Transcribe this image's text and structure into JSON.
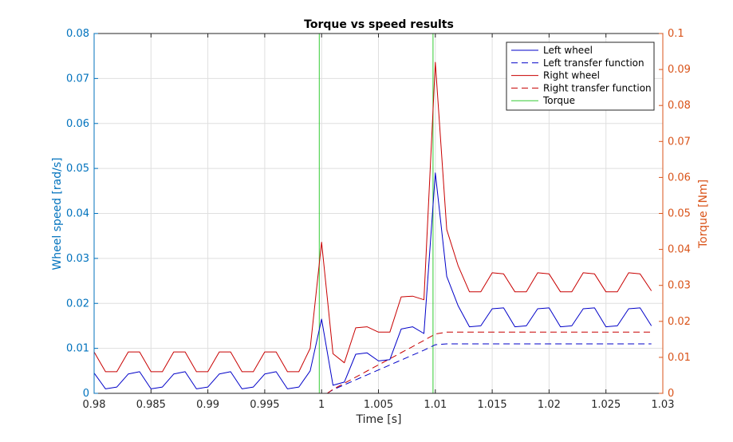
{
  "chart_data": {
    "type": "line",
    "title": "Torque vs speed results",
    "xlabel": "Time [s]",
    "ylabel_left": "Wheel speed [rad/s]",
    "ylabel_right": "Torque [Nm]",
    "xlim": [
      0.98,
      1.03
    ],
    "ylim_left": [
      0,
      0.08
    ],
    "ylim_right": [
      0,
      0.1
    ],
    "xticks": [
      "0.98",
      "0.985",
      "0.99",
      "0.995",
      "1",
      "1.005",
      "1.01",
      "1.015",
      "1.02",
      "1.025",
      "1.03"
    ],
    "yticks_left": [
      "0",
      "0.01",
      "0.02",
      "0.03",
      "0.04",
      "0.05",
      "0.06",
      "0.07",
      "0.08"
    ],
    "yticks_right": [
      "0",
      "0.01",
      "0.02",
      "0.03",
      "0.04",
      "0.05",
      "0.06",
      "0.07",
      "0.08",
      "0.09",
      "0.1"
    ],
    "grid": true,
    "legend_position": "top-right",
    "colors": {
      "left_axis": "#0072BD",
      "right_axis": "#D95319",
      "left_wheel": "#0000C8",
      "right_wheel": "#C80000",
      "torque": "#33CC33",
      "grid": "#DFDFDF",
      "axes": "#262626"
    },
    "series": [
      {
        "name": "Left wheel",
        "axis": "left",
        "style": "solid",
        "color": "#0000C8",
        "x": [
          0.98,
          0.981,
          0.982,
          0.983,
          0.984,
          0.985,
          0.986,
          0.987,
          0.988,
          0.989,
          0.99,
          0.991,
          0.992,
          0.993,
          0.994,
          0.995,
          0.996,
          0.997,
          0.998,
          0.999,
          1.0,
          1.001,
          1.002,
          1.003,
          1.004,
          1.005,
          1.006,
          1.007,
          1.008,
          1.009,
          1.01,
          1.011,
          1.012,
          1.013,
          1.014,
          1.015,
          1.016,
          1.017,
          1.018,
          1.019,
          1.02,
          1.021,
          1.022,
          1.023,
          1.024,
          1.025,
          1.026,
          1.027,
          1.028,
          1.029
        ],
        "y": [
          0.0045,
          0.001,
          0.0014,
          0.0043,
          0.0048,
          0.001,
          0.0014,
          0.0043,
          0.0048,
          0.001,
          0.0014,
          0.0043,
          0.0048,
          0.001,
          0.0014,
          0.0043,
          0.0048,
          0.001,
          0.0014,
          0.005,
          0.0165,
          0.0018,
          0.0025,
          0.0087,
          0.009,
          0.0072,
          0.0075,
          0.0143,
          0.0148,
          0.0133,
          0.049,
          0.026,
          0.0195,
          0.0148,
          0.015,
          0.0188,
          0.019,
          0.0148,
          0.015,
          0.0188,
          0.019,
          0.0148,
          0.015,
          0.0188,
          0.019,
          0.0148,
          0.015,
          0.0188,
          0.019,
          0.015
        ]
      },
      {
        "name": "Left transfer function",
        "axis": "left",
        "style": "dashed",
        "color": "#0000C8",
        "x": [
          1.0005,
          1.001,
          1.002,
          1.003,
          1.004,
          1.005,
          1.006,
          1.007,
          1.008,
          1.009,
          1.01,
          1.011,
          1.015,
          1.02,
          1.025,
          1.029
        ],
        "y": [
          0,
          0.0008,
          0.0019,
          0.003,
          0.0041,
          0.0052,
          0.0063,
          0.0074,
          0.0085,
          0.0096,
          0.0108,
          0.011,
          0.011,
          0.011,
          0.011,
          0.011
        ]
      },
      {
        "name": "Right wheel",
        "axis": "right",
        "style": "solid",
        "color": "#C80000",
        "x": [
          0.98,
          0.981,
          0.982,
          0.983,
          0.984,
          0.985,
          0.986,
          0.987,
          0.988,
          0.989,
          0.99,
          0.991,
          0.992,
          0.993,
          0.994,
          0.995,
          0.996,
          0.997,
          0.998,
          0.999,
          1.0,
          1.001,
          1.002,
          1.003,
          1.004,
          1.005,
          1.006,
          1.007,
          1.008,
          1.009,
          1.01,
          1.011,
          1.012,
          1.013,
          1.014,
          1.015,
          1.016,
          1.017,
          1.018,
          1.019,
          1.02,
          1.021,
          1.022,
          1.023,
          1.024,
          1.025,
          1.026,
          1.027,
          1.028,
          1.029
        ],
        "y": [
          0.0115,
          0.006,
          0.006,
          0.0115,
          0.0115,
          0.006,
          0.006,
          0.0115,
          0.0115,
          0.006,
          0.006,
          0.0115,
          0.0115,
          0.006,
          0.006,
          0.0115,
          0.0115,
          0.006,
          0.006,
          0.0125,
          0.042,
          0.011,
          0.0085,
          0.0182,
          0.0185,
          0.017,
          0.017,
          0.0268,
          0.027,
          0.026,
          0.092,
          0.0455,
          0.0355,
          0.0282,
          0.0282,
          0.0335,
          0.0332,
          0.0282,
          0.0282,
          0.0335,
          0.0332,
          0.0282,
          0.0282,
          0.0335,
          0.0332,
          0.0282,
          0.0282,
          0.0335,
          0.0332,
          0.0285
        ]
      },
      {
        "name": "Right transfer function",
        "axis": "right",
        "style": "dashed",
        "color": "#C80000",
        "x": [
          1.0005,
          1.001,
          1.002,
          1.003,
          1.004,
          1.005,
          1.006,
          1.007,
          1.008,
          1.009,
          1.01,
          1.011,
          1.015,
          1.02,
          1.025,
          1.029
        ],
        "y": [
          0,
          0.0011,
          0.0028,
          0.0045,
          0.0062,
          0.0079,
          0.0096,
          0.0113,
          0.013,
          0.0147,
          0.0165,
          0.017,
          0.017,
          0.017,
          0.017,
          0.017
        ]
      },
      {
        "name": "Torque",
        "axis": "right",
        "style": "solid",
        "color": "#33CC33",
        "x": [
          0.98,
          0.9998,
          0.9998,
          1.0098,
          1.0098,
          1.03
        ],
        "y": [
          0,
          0,
          0.1,
          0.1,
          0,
          0
        ]
      }
    ]
  }
}
